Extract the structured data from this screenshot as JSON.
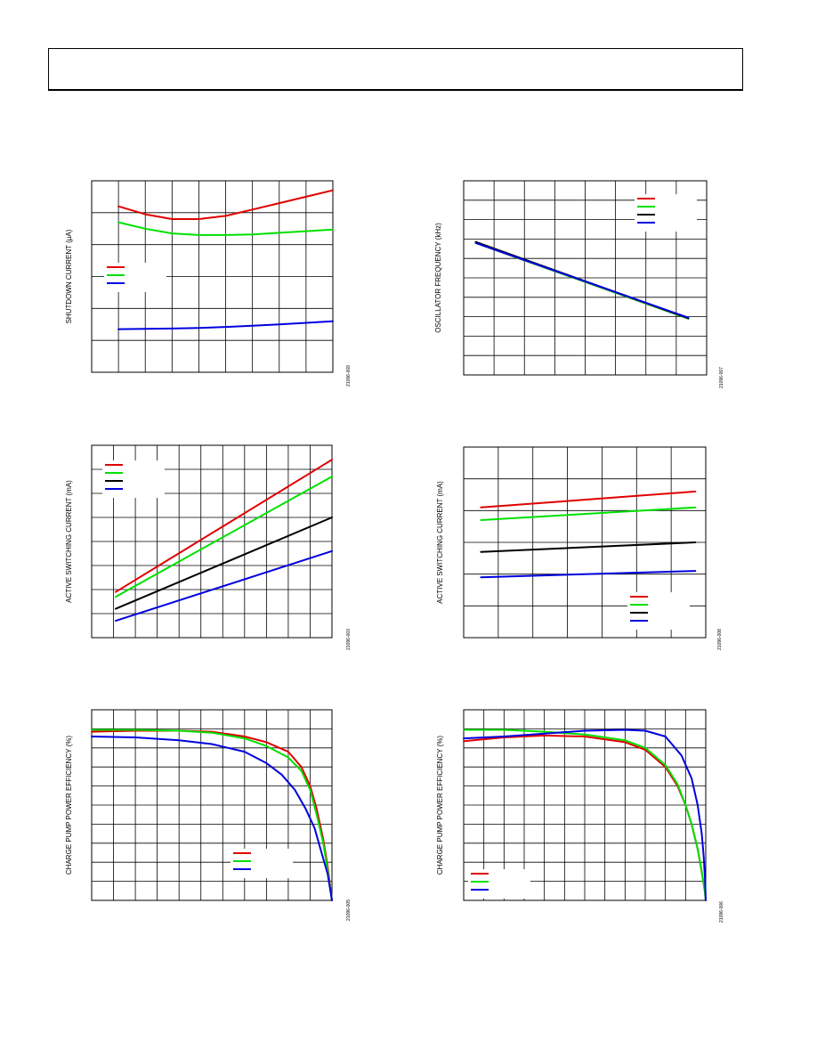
{
  "page": {
    "header_text": ""
  },
  "chart_data": [
    {
      "id": "shutdown",
      "type": "line",
      "ylabel": "SHUTDOWN CURRENT (µA)",
      "fig_id": "21096-009",
      "grid": true,
      "xlim": [
        0,
        9
      ],
      "ylim": [
        0,
        6
      ],
      "legend_position": "center-left",
      "series": [
        {
          "color": "#e00000",
          "x": [
            1,
            2,
            3,
            4,
            5,
            6,
            7,
            8,
            9
          ],
          "y": [
            5.2,
            4.95,
            4.8,
            4.8,
            4.9,
            5.1,
            5.3,
            5.5,
            5.7
          ]
        },
        {
          "color": "#00e000",
          "x": [
            1,
            2,
            3,
            4,
            5,
            6,
            7,
            8,
            9
          ],
          "y": [
            4.7,
            4.5,
            4.35,
            4.3,
            4.3,
            4.32,
            4.37,
            4.42,
            4.47
          ]
        },
        {
          "color": "#0000e0",
          "x": [
            1,
            2,
            3,
            4,
            5,
            6,
            7,
            8,
            9
          ],
          "y": [
            1.35,
            1.36,
            1.37,
            1.39,
            1.42,
            1.46,
            1.5,
            1.55,
            1.6
          ]
        }
      ]
    },
    {
      "id": "oscillator",
      "type": "line",
      "ylabel": "OSCILLATOR FREQUENCY (kHz)",
      "fig_id": "21096-007",
      "grid": true,
      "xlim": [
        0,
        8
      ],
      "ylim": [
        0,
        10
      ],
      "legend_position": "top-right",
      "series": [
        {
          "color": "#e00000",
          "x": [
            0.4,
            7.4
          ],
          "y": [
            6.8,
            2.9
          ]
        },
        {
          "color": "#00e000",
          "x": [
            0.4,
            7.4
          ],
          "y": [
            6.8,
            2.9
          ]
        },
        {
          "color": "#000000",
          "x": [
            0.4,
            7.4
          ],
          "y": [
            6.85,
            2.92
          ]
        },
        {
          "color": "#0000e0",
          "x": [
            0.4,
            7.4
          ],
          "y": [
            6.8,
            2.95
          ]
        }
      ]
    },
    {
      "id": "active-a",
      "type": "line",
      "ylabel": "ACTIVE SWITCHING CURRENT (mA)",
      "fig_id": "21096-003",
      "grid": true,
      "xlim": [
        0,
        10
      ],
      "ylim": [
        0,
        8
      ],
      "legend_position": "top-left",
      "series": [
        {
          "color": "#e00000",
          "x": [
            1,
            10
          ],
          "y": [
            1.9,
            7.4
          ]
        },
        {
          "color": "#00e000",
          "x": [
            1,
            10
          ],
          "y": [
            1.7,
            6.7
          ]
        },
        {
          "color": "#000000",
          "x": [
            1,
            10
          ],
          "y": [
            1.2,
            5.0
          ]
        },
        {
          "color": "#0000e0",
          "x": [
            1,
            10
          ],
          "y": [
            0.7,
            3.6
          ]
        }
      ]
    },
    {
      "id": "active-b",
      "type": "line",
      "ylabel": "ACTIVE SWITCHING CURRENT (mA)",
      "fig_id": "21096-008",
      "grid": true,
      "xlim": [
        0,
        7
      ],
      "ylim": [
        0,
        6
      ],
      "legend_position": "bottom-right",
      "series": [
        {
          "color": "#e00000",
          "x": [
            0.5,
            6.7
          ],
          "y": [
            4.1,
            4.6
          ]
        },
        {
          "color": "#00e000",
          "x": [
            0.5,
            6.7
          ],
          "y": [
            3.7,
            4.1
          ]
        },
        {
          "color": "#000000",
          "x": [
            0.5,
            6.7
          ],
          "y": [
            2.7,
            3.0
          ]
        },
        {
          "color": "#0000e0",
          "x": [
            0.5,
            6.7
          ],
          "y": [
            1.9,
            2.1
          ]
        }
      ]
    },
    {
      "id": "efficiency-a",
      "type": "line",
      "ylabel": "CHARGE PUMP POWER EFFICIENCY (%)",
      "fig_id": "21096-005",
      "grid": true,
      "xlim": [
        0,
        11
      ],
      "ylim": [
        0,
        10
      ],
      "legend_position": "bottom-right",
      "series": [
        {
          "color": "#e00000",
          "x": [
            0,
            2,
            4,
            5.5,
            7,
            8,
            9,
            9.6,
            10,
            10.3,
            10.6,
            10.8,
            11
          ],
          "y": [
            8.85,
            8.9,
            8.9,
            8.85,
            8.6,
            8.3,
            7.8,
            7.0,
            6.0,
            4.8,
            3.2,
            1.8,
            0
          ]
        },
        {
          "color": "#00e000",
          "x": [
            0,
            2,
            4,
            5.5,
            7,
            8,
            9,
            9.6,
            10,
            10.3,
            10.6,
            10.8,
            11
          ],
          "y": [
            8.95,
            8.95,
            8.9,
            8.8,
            8.5,
            8.1,
            7.5,
            6.8,
            5.8,
            4.5,
            3.0,
            1.6,
            0
          ]
        },
        {
          "color": "#0000e0",
          "x": [
            0,
            2,
            4,
            5.5,
            7,
            8,
            8.7,
            9.3,
            9.8,
            10.2,
            10.5,
            10.8,
            11
          ],
          "y": [
            8.6,
            8.55,
            8.4,
            8.2,
            7.8,
            7.2,
            6.6,
            5.8,
            4.8,
            3.8,
            2.6,
            1.4,
            0
          ]
        }
      ]
    },
    {
      "id": "efficiency-b",
      "type": "line",
      "ylabel": "CHARGE PUMP POWER EFFICIENCY (%)",
      "fig_id": "21096-006",
      "grid": true,
      "xlim": [
        0,
        12
      ],
      "ylim": [
        0,
        10
      ],
      "legend_position": "bottom-left",
      "series": [
        {
          "color": "#e00000",
          "x": [
            0,
            2,
            4,
            6,
            8,
            9,
            10,
            10.6,
            11,
            11.3,
            11.6,
            11.8,
            11.95,
            12
          ],
          "y": [
            8.35,
            8.55,
            8.65,
            8.6,
            8.3,
            7.9,
            7.0,
            6.0,
            5.0,
            4.0,
            2.7,
            1.5,
            0.5,
            0
          ]
        },
        {
          "color": "#00e000",
          "x": [
            0,
            2,
            4,
            6,
            8,
            9,
            10,
            10.6,
            11,
            11.3,
            11.6,
            11.8,
            11.95,
            12
          ],
          "y": [
            8.95,
            8.95,
            8.85,
            8.7,
            8.4,
            8.0,
            7.1,
            6.1,
            5.0,
            4.0,
            2.7,
            1.5,
            0.5,
            0
          ]
        },
        {
          "color": "#0000e0",
          "x": [
            0,
            2,
            4,
            6,
            8,
            9,
            10,
            10.8,
            11.3,
            11.6,
            11.8,
            11.9,
            11.97,
            12
          ],
          "y": [
            8.5,
            8.6,
            8.75,
            8.9,
            8.95,
            8.9,
            8.6,
            7.6,
            6.4,
            5.0,
            3.5,
            2.3,
            1.0,
            0
          ]
        }
      ]
    }
  ]
}
